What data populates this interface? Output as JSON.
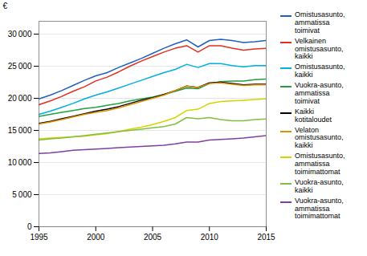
{
  "chart_data": {
    "type": "line",
    "x": [
      1995,
      1996,
      1997,
      1998,
      1999,
      2000,
      2001,
      2002,
      2003,
      2004,
      2005,
      2006,
      2007,
      2008,
      2009,
      2010,
      2011,
      2012,
      2013,
      2014,
      2015
    ],
    "series": [
      {
        "name": "Omistusasunto,\nammatissa\ntoimivat",
        "color": "#2060c0",
        "values": [
          19900,
          20500,
          21200,
          22000,
          22800,
          23500,
          24000,
          24800,
          25500,
          26200,
          27000,
          27800,
          28500,
          29100,
          28000,
          29000,
          29200,
          29000,
          28700,
          28800,
          29000
        ]
      },
      {
        "name": "Velkainen\nomistusasunto,\nkaikki",
        "color": "#e03020",
        "values": [
          19000,
          19600,
          20300,
          21100,
          21800,
          22700,
          23300,
          24100,
          25000,
          25800,
          26500,
          27200,
          27800,
          28200,
          27200,
          28200,
          28200,
          27800,
          27500,
          27700,
          27800
        ]
      },
      {
        "name": "Omistusasunto,\nkaikki",
        "color": "#00b0e0",
        "values": [
          17500,
          18000,
          18600,
          19200,
          19900,
          20500,
          21000,
          21600,
          22200,
          22800,
          23400,
          24000,
          24500,
          25300,
          24800,
          25400,
          25400,
          25100,
          24900,
          25100,
          25100
        ]
      },
      {
        "name": "Vuokra-asunto,\nammatissa\ntoimivat",
        "color": "#20a040",
        "values": [
          17200,
          17500,
          17800,
          18100,
          18400,
          18600,
          18900,
          19200,
          19600,
          19900,
          20200,
          20600,
          21100,
          21600,
          21500,
          22300,
          22600,
          22700,
          22700,
          22900,
          23000
        ]
      },
      {
        "name": "Kaikki\nkotitaloudet",
        "color": "#000000",
        "values": [
          16100,
          16400,
          16800,
          17200,
          17600,
          18000,
          18300,
          18700,
          19200,
          19700,
          20100,
          20600,
          21200,
          21900,
          21700,
          22400,
          22500,
          22300,
          22100,
          22200,
          22200
        ]
      },
      {
        "name": "Velaton\nomistusasunto,\nkaikki",
        "color": "#e09000",
        "values": [
          16000,
          16300,
          16700,
          17100,
          17500,
          17800,
          18100,
          18500,
          19000,
          19500,
          20000,
          20500,
          21200,
          21900,
          21700,
          22300,
          22400,
          22200,
          22000,
          22100,
          22100
        ]
      },
      {
        "name": "Omistusasunto,\nammatissa\ntoimimattomat",
        "color": "#d4d400",
        "values": [
          13700,
          13800,
          13900,
          14000,
          14100,
          14300,
          14500,
          14800,
          15200,
          15500,
          15900,
          16400,
          17000,
          18100,
          18300,
          19200,
          19500,
          19600,
          19700,
          19800,
          19900
        ]
      },
      {
        "name": "Vuokra-asunto,\nkaikki",
        "color": "#80c040",
        "values": [
          13500,
          13700,
          13800,
          14000,
          14200,
          14400,
          14600,
          14800,
          15000,
          15200,
          15400,
          15600,
          16000,
          17000,
          16800,
          17000,
          16700,
          16500,
          16500,
          16700,
          16800
        ]
      },
      {
        "name": "Vuokra-asunto,\nammatissa\ntoimimattomat",
        "color": "#8040a0",
        "values": [
          11400,
          11500,
          11700,
          11900,
          12000,
          12100,
          12200,
          12300,
          12400,
          12500,
          12600,
          12700,
          12900,
          13200,
          13200,
          13500,
          13600,
          13700,
          13800,
          14000,
          14200
        ]
      }
    ],
    "ylabel": "€",
    "ylim": [
      0,
      32000
    ],
    "yticks": [
      0,
      {
        "value": 5000,
        "label": "5 000"
      },
      {
        "value": 10000,
        "label": "10 000"
      },
      {
        "value": 15000,
        "label": "15 000"
      },
      {
        "value": 20000,
        "label": "20 000"
      },
      {
        "value": 25000,
        "label": "25 000"
      },
      {
        "value": 30000,
        "label": "30 000"
      }
    ],
    "xlim": [
      1995,
      2015
    ],
    "xticks": [
      1995,
      2000,
      2005,
      2010,
      2015
    ],
    "grid": true,
    "legend": "right"
  }
}
